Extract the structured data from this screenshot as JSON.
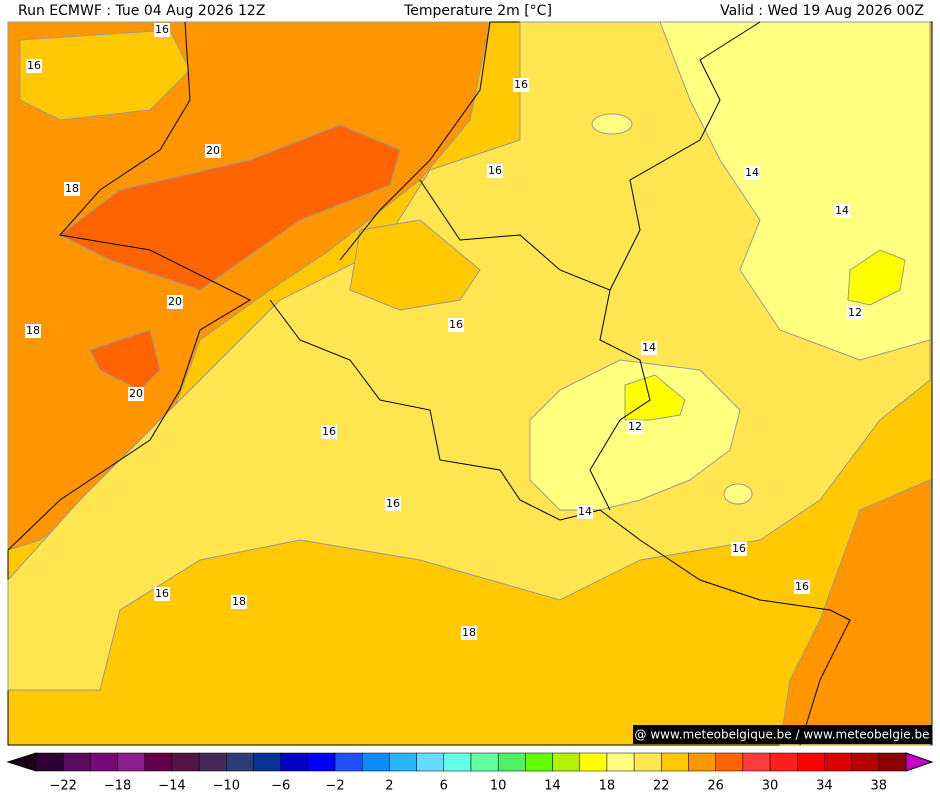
{
  "header": {
    "run": "Run ECMWF : Tue 04 Aug 2026 12Z",
    "title": "Temperature 2m [°C]",
    "valid": "Valid : Wed 19 Aug 2026 00Z"
  },
  "contour_labels": [
    "16",
    "16",
    "16",
    "20",
    "18",
    "16",
    "14",
    "14",
    "20",
    "18",
    "16",
    "12",
    "14",
    "20",
    "16",
    "12",
    "16",
    "14",
    "16",
    "16",
    "16",
    "18",
    "18"
  ],
  "watermark": "@ www.meteobelgique.be / www.meteobelgie.be",
  "colorbar": {
    "colors": [
      "#2d0036",
      "#5a0a5a",
      "#780a78",
      "#8c1e8c",
      "#64004b",
      "#50144b",
      "#46285a",
      "#2d3c78",
      "#0a3296",
      "#0000c8",
      "#0000ff",
      "#1e50ff",
      "#0a8cff",
      "#28b4ff",
      "#64dcff",
      "#64ffe6",
      "#64ffa0",
      "#50f064",
      "#64ff00",
      "#b4f000",
      "#ffff00",
      "#ffff80",
      "#ffe650",
      "#ffc800",
      "#ff9600",
      "#ff6400",
      "#ff3c3c",
      "#ff1e1e",
      "#ff0000",
      "#dc0000",
      "#b40000",
      "#8c0000"
    ],
    "labels": [
      "−22",
      "−18",
      "−14",
      "−10",
      "−6",
      "−2",
      "2",
      "6",
      "10",
      "14",
      "18",
      "22",
      "26",
      "30",
      "34",
      "38"
    ]
  }
}
